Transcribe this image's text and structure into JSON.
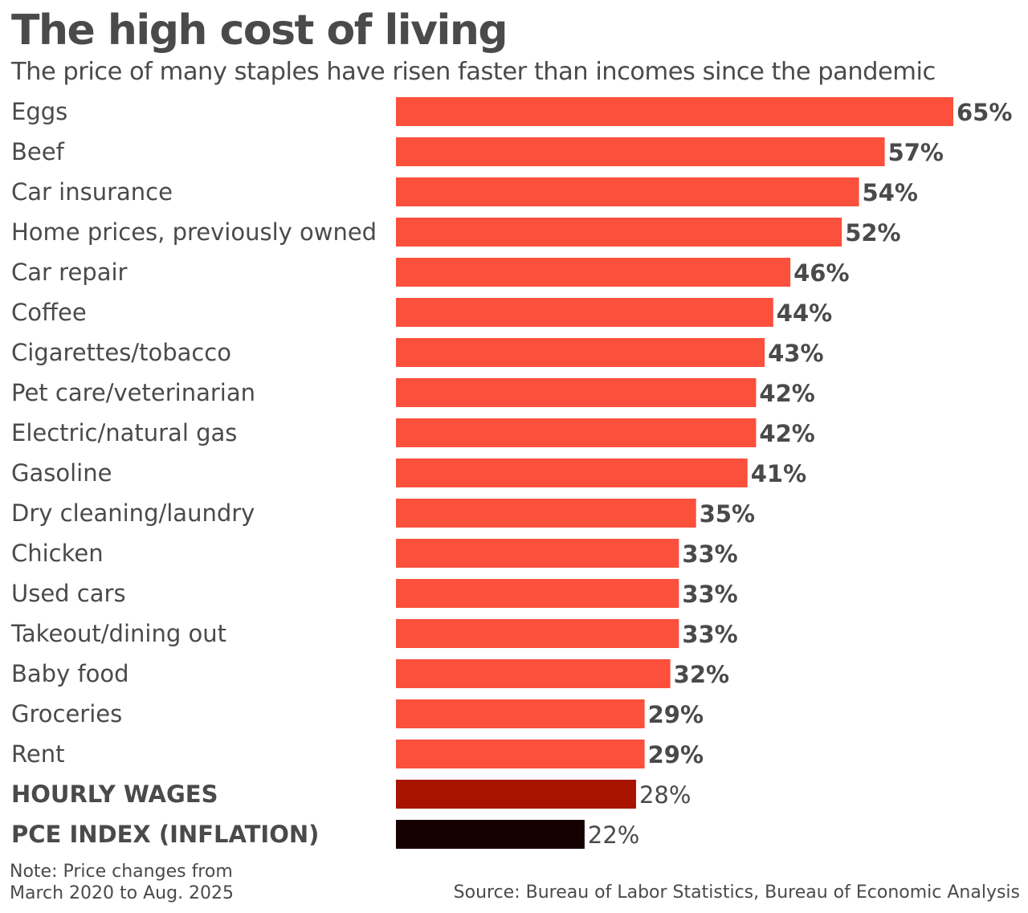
{
  "chart_data": {
    "type": "bar",
    "orientation": "horizontal",
    "title": "The high cost of living",
    "subtitle": "The price of many staples have risen faster than incomes since the pandemic",
    "categories": [
      "Eggs",
      "Beef",
      "Car insurance",
      "Home prices, previously owned",
      "Car repair",
      "Coffee",
      "Cigarettes/tobacco",
      "Pet care/veterinarian",
      "Electric/natural gas",
      "Gasoline",
      "Dry cleaning/laundry",
      "Chicken",
      "Used cars",
      "Takeout/dining out",
      "Baby food",
      "Groceries",
      "Rent",
      "HOURLY WAGES",
      "PCE INDEX (INFLATION)"
    ],
    "values": [
      65,
      57,
      54,
      52,
      46,
      44,
      43,
      42,
      42,
      41,
      35,
      33,
      33,
      33,
      32,
      29,
      29,
      28,
      22
    ],
    "value_labels": [
      "65%",
      "57%",
      "54%",
      "52%",
      "46%",
      "44%",
      "43%",
      "42%",
      "42%",
      "41%",
      "35%",
      "33%",
      "33%",
      "33%",
      "32%",
      "29%",
      "29%",
      "28%",
      "22%"
    ],
    "emphasized_categories": [
      "HOURLY WAGES",
      "PCE INDEX (INFLATION)"
    ],
    "colors": {
      "default": "#fa503c",
      "HOURLY WAGES": "#a81400",
      "PCE INDEX (INFLATION)": "#150200"
    },
    "xlim": [
      0,
      65
    ],
    "grid": false,
    "legend": "none",
    "note": "Note: Price changes from March 2020 to Aug. 2025",
    "note_lines": [
      "Note: Price changes from",
      "March 2020 to Aug. 2025"
    ],
    "source": "Source: Bureau of Labor Statistics, Bureau of Economic Analysis"
  }
}
